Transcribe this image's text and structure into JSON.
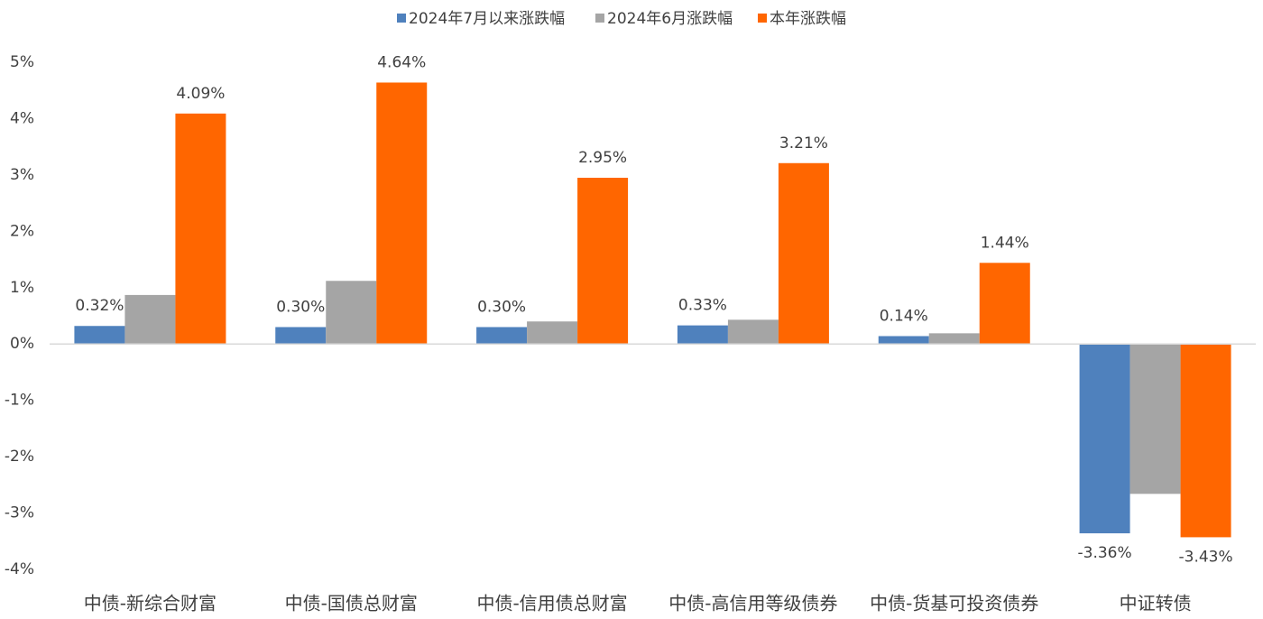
{
  "chart_data": {
    "type": "bar",
    "categories": [
      "中债-新综合财富",
      "中债-国债总财富",
      "中债-信用债总财富",
      "中债-高信用等级债券",
      "中债-货基可投资债券",
      "中证转债"
    ],
    "series": [
      {
        "name": "2024年7月以来涨跌幅",
        "color": "#4f81bd",
        "values": [
          0.32,
          0.3,
          0.3,
          0.33,
          0.14,
          -3.36
        ],
        "value_labels": [
          "0.32%",
          "0.30%",
          "0.30%",
          "0.33%",
          "0.14%",
          "-3.36%"
        ]
      },
      {
        "name": "2024年6月涨跌幅",
        "color": "#a5a5a5",
        "values": [
          0.87,
          1.12,
          0.4,
          0.43,
          0.19,
          -2.66
        ]
      },
      {
        "name": "本年涨跌幅",
        "color": "#ff6600",
        "values": [
          4.09,
          4.64,
          2.95,
          3.21,
          1.44,
          -3.43
        ],
        "value_labels": [
          "4.09%",
          "4.64%",
          "2.95%",
          "3.21%",
          "1.44%",
          "-3.43%"
        ]
      }
    ],
    "ylim": [
      -4,
      5
    ],
    "yticks": [
      {
        "value": -4,
        "label": "-4%"
      },
      {
        "value": -3,
        "label": "-3%"
      },
      {
        "value": -2,
        "label": "-2%"
      },
      {
        "value": -1,
        "label": "-1%"
      },
      {
        "value": 0,
        "label": "0%"
      },
      {
        "value": 1,
        "label": "1%"
      },
      {
        "value": 2,
        "label": "2%"
      },
      {
        "value": 3,
        "label": "3%"
      },
      {
        "value": 4,
        "label": "4%"
      },
      {
        "value": 5,
        "label": "5%"
      }
    ],
    "grid": false,
    "legend": "top"
  }
}
